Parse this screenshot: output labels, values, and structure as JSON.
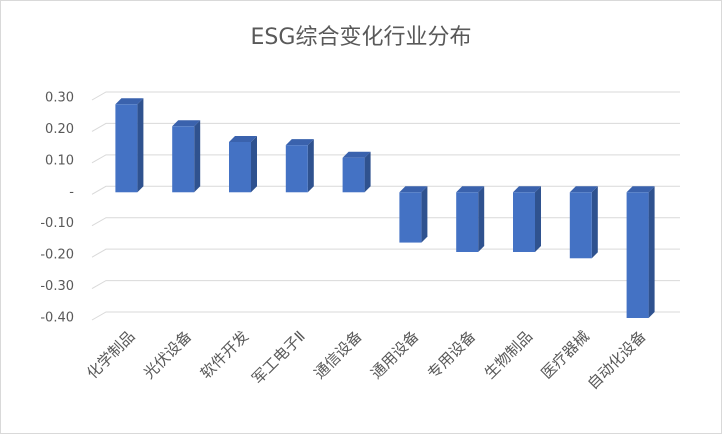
{
  "chart_data": {
    "type": "bar3d",
    "title": "ESG综合变化行业分布",
    "categories": [
      "化学制品",
      "光伏设备",
      "软件开发",
      "军工电子Ⅱ",
      "通信设备",
      "通用设备",
      "专用设备",
      "生物制品",
      "医疗器械",
      "自动化设备"
    ],
    "values": [
      0.28,
      0.21,
      0.16,
      0.15,
      0.11,
      -0.16,
      -0.19,
      -0.19,
      -0.21,
      -0.4
    ],
    "color": "#4472c4",
    "ylim": [
      -0.4,
      0.3
    ],
    "yticks": [
      {
        "value": 0.3,
        "label": "0.30"
      },
      {
        "value": 0.2,
        "label": "0.20"
      },
      {
        "value": 0.1,
        "label": "0.10"
      },
      {
        "value": 0,
        "label": "-"
      },
      {
        "value": -0.1,
        "label": "-0.10"
      },
      {
        "value": -0.2,
        "label": "-0.20"
      },
      {
        "value": -0.3,
        "label": "-0.30"
      },
      {
        "value": -0.4,
        "label": "-0.40"
      }
    ],
    "grid": true
  }
}
